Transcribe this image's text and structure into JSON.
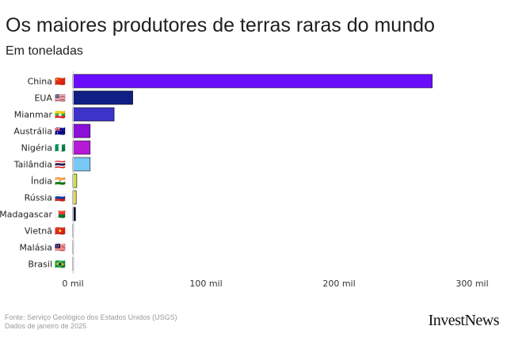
{
  "title": "Os maiores produtores de terras raras do mundo",
  "subtitle": "Em toneladas",
  "source_lines": [
    "Fonte: Serviço Geológico dos Estados Unidos (USGS)",
    "Dados de janeiro de 2025"
  ],
  "brand": "InvestNews",
  "chart_data": {
    "type": "bar",
    "orientation": "horizontal",
    "title": "Os maiores produtores de terras raras do mundo",
    "subtitle": "Em toneladas",
    "categories": [
      "China",
      "EUA",
      "Mianmar",
      "Austrália",
      "Nigéria",
      "Tailândia",
      "Índia",
      "Rússia",
      "Madagascar",
      "Vietnã",
      "Malásia",
      "Brasil"
    ],
    "values": [
      270000,
      45000,
      31000,
      13000,
      13000,
      13000,
      2900,
      2500,
      2000,
      300,
      130,
      20
    ],
    "colors": [
      "#6a0dff",
      "#101f85",
      "#3d33c8",
      "#8a10d8",
      "#b51ad6",
      "#78c8f5",
      "#cfe24a",
      "#e3d84f",
      "#0d0d3a",
      "#444444",
      "#a01020",
      "#1fa050"
    ],
    "flags": [
      "🇨🇳",
      "🇺🇸",
      "🇲🇲",
      "🇦🇺",
      "🇳🇬",
      "🇹🇭",
      "🇮🇳",
      "🇷🇺",
      "🇲🇬",
      "🇻🇳",
      "🇲🇾",
      "🇧🇷"
    ],
    "xlim": [
      0,
      300000
    ],
    "xticks": [
      0,
      100000,
      200000,
      300000
    ],
    "xtick_labels": [
      "0 mil",
      "100 mil",
      "200 mil",
      "300 mil"
    ],
    "grid": false,
    "xlabel": "",
    "ylabel": ""
  }
}
